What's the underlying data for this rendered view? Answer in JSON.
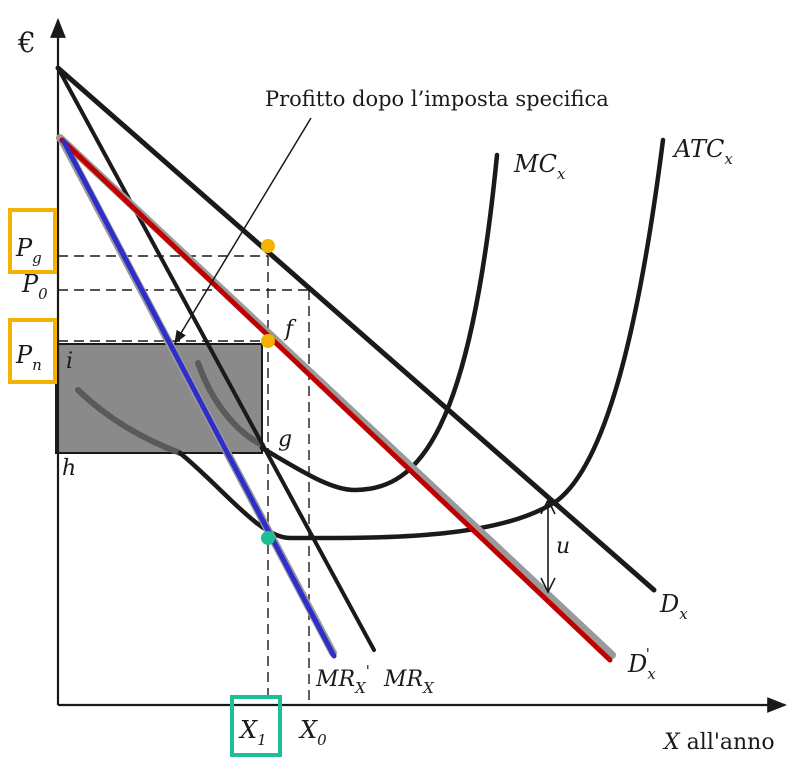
{
  "diagram": {
    "axes": {
      "y_label": "€",
      "x_label_var": "X",
      "x_label_rest": " all'anno"
    },
    "annotation": "Profitto dopo l’imposta specifica",
    "curves": {
      "mc": {
        "main": "MC",
        "sub": "x"
      },
      "atc": {
        "main": "ATC",
        "sub": "x"
      },
      "d": {
        "main": "D",
        "sub": "x"
      },
      "d_prime": {
        "main": "D",
        "sub": "x",
        "sup": "'"
      },
      "mr_prime": {
        "main": "MR",
        "sub": "X",
        "sup": "'"
      },
      "mr": {
        "main": "MR",
        "sub": "X"
      }
    },
    "prices": {
      "pg": {
        "main": "P",
        "sub": "g"
      },
      "p0": {
        "main": "P",
        "sub": "0"
      },
      "pn": {
        "main": "P",
        "sub": "n"
      }
    },
    "quantities": {
      "x1": {
        "main": "X",
        "sub": "1"
      },
      "x0": {
        "main": "X",
        "sub": "0"
      }
    },
    "points": {
      "f": "f",
      "g": "g",
      "h": "h",
      "i": "i"
    },
    "tax": "u",
    "colors": {
      "axis": "#1a1a1a",
      "curve": "#1a1a1a",
      "demand_after_tax": "#c00000",
      "mr_after_tax": "#2e2ec8",
      "profit_area": "#8a8a8a",
      "highlight_orange": "#f5b301",
      "highlight_green": "#1dbf95"
    }
  }
}
